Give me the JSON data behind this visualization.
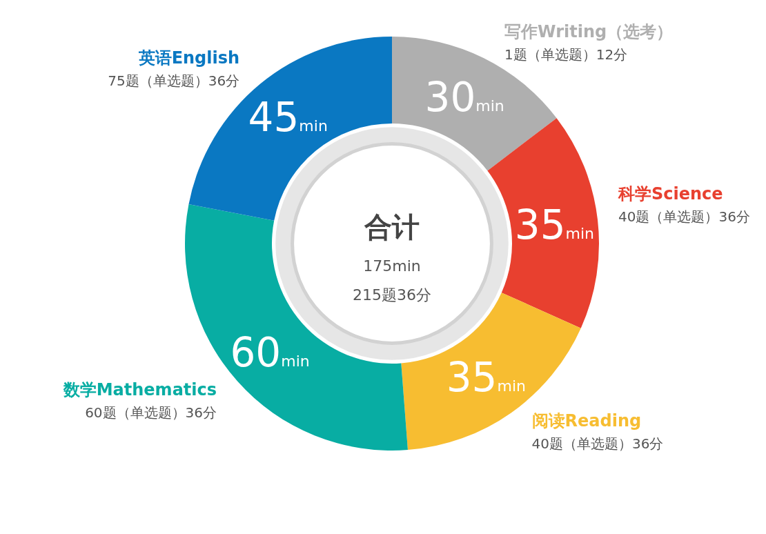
{
  "chart_data": {
    "type": "donut",
    "title": "合计",
    "categories": [
      "写作Writing（选考）",
      "科学Science",
      "阅读Reading",
      "数学Mathematics",
      "英语English"
    ],
    "values": [
      30,
      35,
      35,
      60,
      45
    ],
    "colors": [
      "#afafaf",
      "#e8402f",
      "#f7bd31",
      "#08ada3",
      "#0a78c2"
    ],
    "value_labels": [
      "30min",
      "35min",
      "35min",
      "60min",
      "45min"
    ],
    "annotations": [
      "1题（单选题）12分",
      "40题（单选题）36分",
      "40题（单选题）36分",
      "60题（单选题）36分",
      "75题（单选题）36分",
      "175min",
      "215题36分"
    ]
  }
}
